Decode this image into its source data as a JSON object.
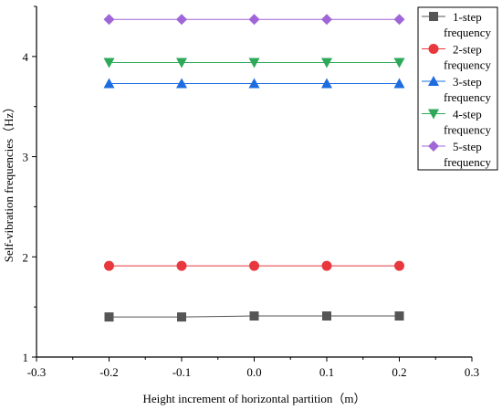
{
  "chart_data": {
    "type": "line",
    "title": "",
    "xlabel": "Height increment of horizontal partition（m）",
    "ylabel": "Self-vibration frequencies（Hz）",
    "xlim": [
      -0.3,
      0.3
    ],
    "ylim": [
      1,
      4.5
    ],
    "xticks": [
      -0.3,
      -0.2,
      -0.1,
      0.0,
      0.1,
      0.2,
      0.3
    ],
    "xtick_labels": [
      "-0.3",
      "-0.2",
      "-0.1",
      "0.0",
      "0.1",
      "0.2",
      "0.3"
    ],
    "yticks": [
      1,
      2,
      3,
      4
    ],
    "ytick_labels": [
      "1",
      "2",
      "3",
      "4"
    ],
    "grid": false,
    "legend_position": "top-right",
    "x": [
      -0.2,
      -0.1,
      0.0,
      0.1,
      0.2
    ],
    "series": [
      {
        "name": "1-step frequency",
        "values": [
          1.4,
          1.4,
          1.41,
          1.41,
          1.41
        ],
        "color": "#555555",
        "marker": "square"
      },
      {
        "name": "2-step frequency",
        "values": [
          1.91,
          1.91,
          1.91,
          1.91,
          1.91
        ],
        "color": "#e8383d",
        "marker": "circle"
      },
      {
        "name": "3-step frequency",
        "values": [
          3.73,
          3.73,
          3.73,
          3.73,
          3.73
        ],
        "color": "#1e6de0",
        "marker": "triangle-up"
      },
      {
        "name": "4-step frequency",
        "values": [
          3.94,
          3.94,
          3.94,
          3.94,
          3.94
        ],
        "color": "#2ea95a",
        "marker": "triangle-down"
      },
      {
        "name": "5-step frequency",
        "values": [
          4.37,
          4.37,
          4.37,
          4.37,
          4.37
        ],
        "color": "#a066d8",
        "marker": "diamond"
      }
    ]
  }
}
